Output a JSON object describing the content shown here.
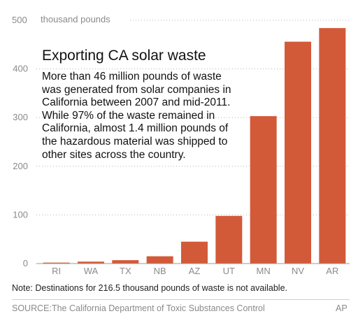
{
  "chart_data": {
    "type": "bar",
    "title": "Exporting CA solar waste",
    "description": "More than 46 million pounds of waste was generated from solar companies in California between 2007 and mid-2011. While 97% of the waste remained in California, almost 1.4 million pounds of the hazardous material was shipped to other sites across the country.",
    "unit_label": "thousand pounds",
    "categories": [
      "RI",
      "WA",
      "TX",
      "NB",
      "AZ",
      "UT",
      "MN",
      "NV",
      "AR"
    ],
    "values": [
      2,
      4,
      7,
      15,
      45,
      98,
      303,
      456,
      484
    ],
    "ylim": [
      0,
      500
    ],
    "yticks": [
      0,
      100,
      200,
      300,
      400,
      500
    ],
    "bar_color": "#d35a38",
    "grid": true,
    "note": "Note: Destinations for 216.5 thousand pounds of waste is not available.",
    "source": "SOURCE:The California Department of Toxic Substances Control",
    "credit": "AP"
  }
}
